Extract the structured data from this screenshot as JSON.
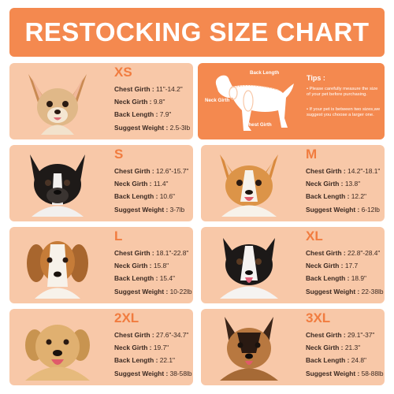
{
  "title": "RESTOCKING SIZE CHART",
  "labels": {
    "chest_girth": "Chest Girth :",
    "neck_girth": "Neck Girth :",
    "back_length": "Back Length :",
    "suggest_weight": "Suggest Weight :"
  },
  "sizes": [
    {
      "size": "XS",
      "chest_girth": "11\"-14.2\"",
      "neck_girth": "9.8\"",
      "back_length": "7.9\"",
      "suggest_weight": "2.5-3lb"
    },
    {
      "size": "S",
      "chest_girth": "12.6\"-15.7\"",
      "neck_girth": "11.4\"",
      "back_length": "10.6\"",
      "suggest_weight": "3-7lb"
    },
    {
      "size": "M",
      "chest_girth": "14.2\"-18.1\"",
      "neck_girth": "13.8\"",
      "back_length": "12.2\"",
      "suggest_weight": "6-12lb"
    },
    {
      "size": "L",
      "chest_girth": "18.1\"-22.8\"",
      "neck_girth": "15.8\"",
      "back_length": "15.4\"",
      "suggest_weight": "10-22lb"
    },
    {
      "size": "XL",
      "chest_girth": "22.8\"-28.4\"",
      "neck_girth": "17.7",
      "back_length": "18.9\"",
      "suggest_weight": "22-38lb"
    },
    {
      "size": "2XL",
      "chest_girth": "27.6\"-34.7\"",
      "neck_girth": "19.7\"",
      "back_length": "22.1\"",
      "suggest_weight": "38-58lb"
    },
    {
      "size": "3XL",
      "chest_girth": "29.1\"-37\"",
      "neck_girth": "21.3\"",
      "back_length": "24.8\"",
      "suggest_weight": "58-88lb"
    }
  ],
  "diagram": {
    "back_length": "Back Length",
    "neck_girth": "Neck Girth",
    "chest_girth": "Chest Girth"
  },
  "tips": {
    "title": "Tips :",
    "items": [
      "• Please carefully measure the size of your pet before purchasing.",
      "• If your pet is between two sizes,we suggest you choose a larger one."
    ]
  },
  "colors": {
    "title_bg": "#f4894f",
    "card_bg": "#f8c8a8",
    "size_label": "#f17c3f",
    "diagram_bg": "#f4894f",
    "text": "#3c2a22"
  }
}
